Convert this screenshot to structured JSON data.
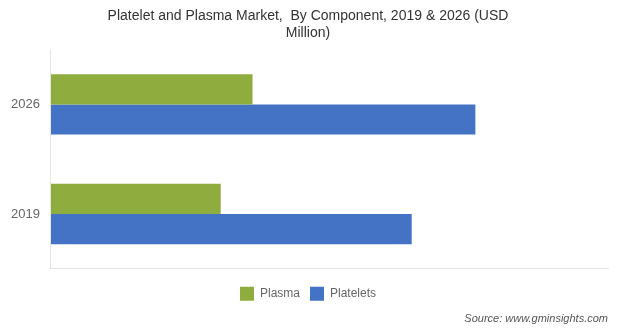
{
  "chart_data": {
    "type": "bar",
    "orientation": "horizontal",
    "title": "Platelet and Plasma Market,  By Component, 2019 & 2026 (USD\nMillion)",
    "categories": [
      "2026",
      "2019"
    ],
    "series": [
      {
        "name": "Plasma",
        "color": "#8fad3f",
        "values": [
          3800,
          3200
        ]
      },
      {
        "name": "Platelets",
        "color": "#4472c4",
        "values": [
          8000,
          6800
        ]
      }
    ],
    "xlim": [
      0,
      10500
    ],
    "grid": false,
    "legend": "bottom",
    "tick_labels": "y",
    "annotations": [
      "Source: www.gminsights.com"
    ]
  }
}
